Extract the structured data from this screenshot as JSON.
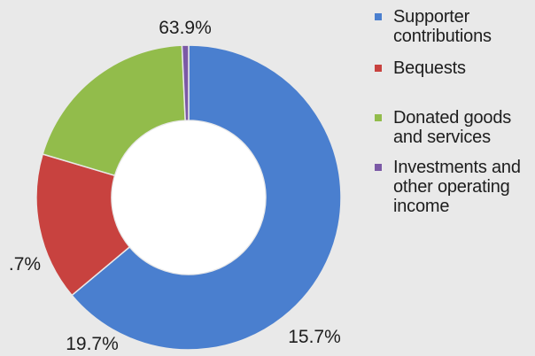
{
  "chart_data": {
    "type": "pie",
    "style": "donut",
    "title": "",
    "legend_position": "right",
    "series": [
      {
        "name": "Supporter contributions",
        "value": 63.9,
        "label": "63.9%",
        "color": "#4a7fcf"
      },
      {
        "name": "Bequests",
        "value": 15.7,
        "label": "15.7%",
        "color": "#c8423f"
      },
      {
        "name": "Donated goods and services",
        "value": 19.7,
        "label": "19.7%",
        "color": "#92bc4b"
      },
      {
        "name": "Investments and other operating income",
        "value": 0.7,
        "label": ".7%",
        "color": "#7b59a6"
      }
    ]
  },
  "legend": {
    "items": [
      {
        "label": "Supporter\ncontributions",
        "color": "#4a7fcf"
      },
      {
        "label": "Bequests",
        "color": "#c8423f"
      },
      {
        "label": "Donated goods\nand services",
        "color": "#92bc4b"
      },
      {
        "label": "Investments and\nother operating\nincome",
        "color": "#7b59a6"
      }
    ]
  }
}
